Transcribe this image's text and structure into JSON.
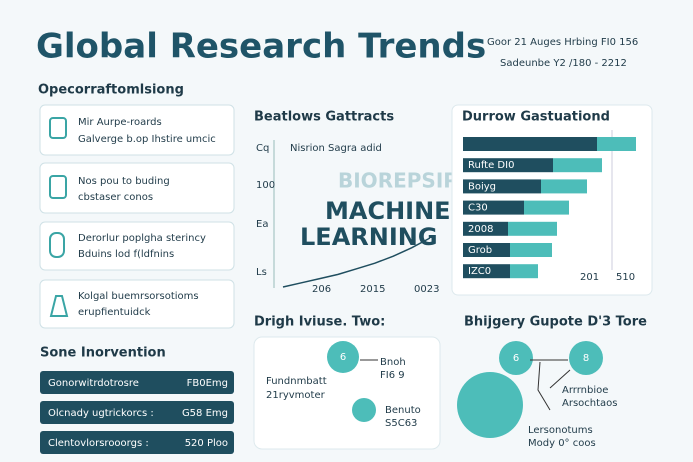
{
  "header": {
    "title": "Global Research Trends",
    "meta": [
      "Goor 21 Auges Hrbing FI0 156",
      "Sadeunbe Y2 /180 - 2212"
    ]
  },
  "overview": {
    "title": "Opecorraftomlsiong",
    "cards": [
      {
        "lines": [
          "Mir Aurpe-roards",
          "Galverge b.op Ihstire umcic"
        ]
      },
      {
        "lines": [
          "Nos pou to buding",
          "cbstaser conos"
        ]
      },
      {
        "lines": [
          "Derorlur poplgha sterincy",
          "Bduins lod f(ldfnins"
        ]
      },
      {
        "lines": [
          "Kolgal buemrsorsotioms",
          "erupfientuidck"
        ]
      }
    ]
  },
  "interventions": {
    "title": "Sone Inorvention",
    "rows": [
      [
        "Gonorwitrdotrosre",
        "FB0Emg"
      ],
      [
        "Olcnady ugtrickorcs :",
        "G58 Emg"
      ],
      [
        "Clentovlorsrooorgs :",
        "520 Ploo"
      ]
    ]
  },
  "trend_panel": {
    "title": "Beatlows Gattracts",
    "legend": "Nisrion Sagra adid",
    "y_labels": [
      "Cq",
      "100",
      "Ea",
      "Ls"
    ],
    "x_labels": [
      "206",
      "2015",
      "0023"
    ],
    "headline": [
      "MACHINE",
      "LEARNING"
    ],
    "blurred": "BIOREPSIPE",
    "values": [
      0,
      3,
      6,
      9,
      13,
      17,
      22,
      28,
      35
    ],
    "color": "#1f4e5f"
  },
  "bar_panel": {
    "title": "Durrow Gastuationd",
    "categories": [
      null,
      "Rufte DI0",
      "Boiyg",
      "C30",
      "2008",
      "Grob",
      "IZC0"
    ],
    "series": [
      {
        "color": "#1f4e5f",
        "values": [
          134,
          90,
          78,
          61,
          45,
          47,
          47
        ]
      },
      {
        "color": "#4dbdb9",
        "values": [
          39,
          49,
          46,
          45,
          49,
          42,
          28
        ]
      }
    ],
    "axis_labels": [
      "201",
      "510"
    ]
  },
  "bubble_panel_1": {
    "title": "Drigh Iviuse. Two:",
    "labels": [
      "Fundnmbatt",
      "21ryvmoter",
      "Bnoh",
      "FI6 9",
      "Benuto",
      "S5C63",
      "6"
    ]
  },
  "bubble_panel_2": {
    "title": "Bhijgery Gupote D'3 Tore",
    "labels": [
      "Arrrnbioe",
      "Arsochtaos",
      "Lersonotums",
      "Mody 0° coos",
      "6",
      "8"
    ]
  }
}
